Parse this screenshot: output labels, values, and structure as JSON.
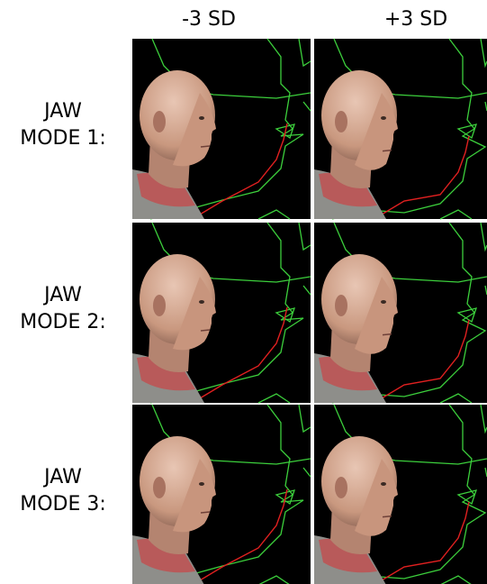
{
  "columns": [
    "-3 SD",
    "+3 SD"
  ],
  "rows": [
    {
      "lines": [
        "JAW",
        "MODE 1:"
      ]
    },
    {
      "lines": [
        "JAW",
        "MODE 2:"
      ]
    },
    {
      "lines": [
        "JAW",
        "MODE 3:"
      ]
    }
  ]
}
